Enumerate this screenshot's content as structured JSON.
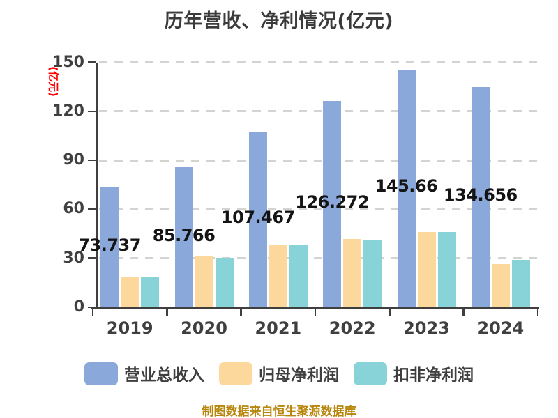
{
  "title": "历年营收、净利情况(亿元)",
  "y_axis_unit": "(亿元)",
  "footer": "制图数据来自恒生聚源数据库",
  "colors": {
    "revenue_bar": "#8BA8DA",
    "net_profit_bar": "#FDD89C",
    "deducted_net_profit_bar": "#87D3D7",
    "title_text": "#3B3B3B",
    "tick_text": "#3F3F3F",
    "value_label_text": "#141414",
    "axis_line": "#3F3F3F",
    "gridline": "#D3D3D0",
    "y_unit_text": "#FF0000",
    "footer_text": "#B8860B",
    "background": "#FFFFFF"
  },
  "chart_data": {
    "type": "bar",
    "title": "历年营收、净利情况(亿元)",
    "categories": [
      "2019",
      "2020",
      "2021",
      "2022",
      "2023",
      "2024"
    ],
    "series": [
      {
        "name": "营业总收入",
        "color": "#8BA8DA",
        "values": [
          73.737,
          85.766,
          107.467,
          126.272,
          145.66,
          134.656
        ],
        "labels": [
          "73.737",
          "85.766",
          "107.467",
          "126.272",
          "145.66",
          "134.656"
        ]
      },
      {
        "name": "归母净利润",
        "color": "#FDD89C",
        "values": [
          18.4,
          31.2,
          38.0,
          41.8,
          46.1,
          26.5
        ],
        "values_estimated_from_pixels": true
      },
      {
        "name": "扣非净利润",
        "color": "#87D3D7",
        "values": [
          18.8,
          29.9,
          38.0,
          41.4,
          46.1,
          29.0
        ],
        "values_estimated_from_pixels": true
      }
    ],
    "xlabel": "",
    "ylabel": "(亿元)",
    "ylim": [
      0,
      150
    ],
    "yticks": [
      0,
      30,
      60,
      90,
      120,
      150
    ],
    "grid": "horizontal-dashed",
    "legend_position": "bottom"
  },
  "legend": {
    "items": [
      {
        "label": "营业总收入",
        "color": "#8BA8DA"
      },
      {
        "label": "归母净利润",
        "color": "#FDD89C"
      },
      {
        "label": "扣非净利润",
        "color": "#87D3D7"
      }
    ]
  }
}
